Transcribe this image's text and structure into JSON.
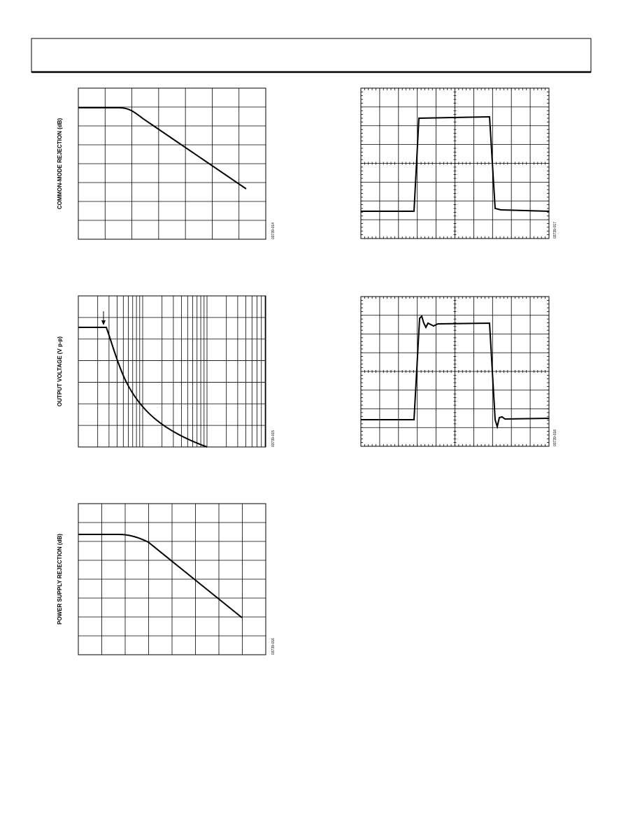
{
  "figures": [
    {
      "y_label": "COMMON-MODE REJECTION (dB)",
      "code": "03739-014"
    },
    {
      "code": "03739-017"
    },
    {
      "y_label": "OUTPUT VOLTAGE (V p-p)",
      "code": "03739-015"
    },
    {
      "code": "03739-018"
    },
    {
      "y_label": "POWER SUPPLY REJECTION (dB)",
      "code": "03739-016"
    }
  ]
}
